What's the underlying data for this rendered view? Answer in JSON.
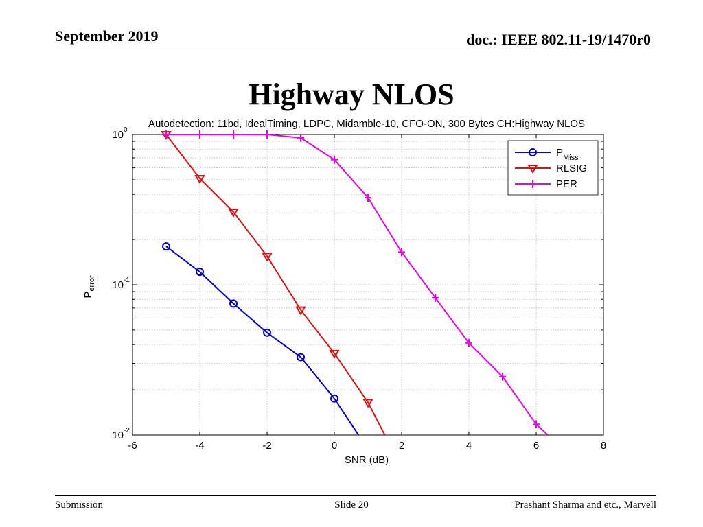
{
  "header": {
    "date": "September 2019",
    "doc": "doc.: IEEE 802.11-19/1470r0"
  },
  "slide": {
    "title": "Highway NLOS"
  },
  "footer": {
    "left": "Submission",
    "center": "Slide 20",
    "right": "Prashant Sharma and etc., Marvell"
  },
  "chart_data": {
    "type": "line",
    "title": "Autodetection: 11bd, IdealTiming, LDPC, Midamble-10, CFO-ON, 300 Bytes CH:Highway NLOS",
    "xlabel": "SNR (dB)",
    "ylabel_main": "P",
    "ylabel_sub": "error",
    "xscale": "linear",
    "yscale": "log",
    "xlim": [
      -6,
      8
    ],
    "ylim": [
      0.01,
      1
    ],
    "xticks": [
      -6,
      -4,
      -2,
      0,
      2,
      4,
      6,
      8
    ],
    "yticks": [
      {
        "value": 1,
        "base": "10",
        "exp": "0"
      },
      {
        "value": 0.1,
        "base": "10",
        "exp": "-1"
      },
      {
        "value": 0.01,
        "base": "10",
        "exp": "-2"
      }
    ],
    "grid": true,
    "legend_position": "top-right",
    "series": [
      {
        "name": "P",
        "name_sub": "Miss",
        "color": "#0000cc",
        "marker": "circle",
        "x": [
          -5,
          -4,
          -3,
          -2,
          -1,
          0,
          0.72
        ],
        "values": [
          0.18,
          0.122,
          0.075,
          0.048,
          0.033,
          0.0175,
          0.01
        ]
      },
      {
        "name": "RLSIG",
        "color": "#e01010",
        "marker": "triangle-down",
        "x": [
          -5,
          -4,
          -3,
          -2,
          -1,
          0,
          1,
          1.5
        ],
        "values": [
          1.0,
          0.51,
          0.305,
          0.155,
          0.068,
          0.035,
          0.0165,
          0.01
        ]
      },
      {
        "name": "PER",
        "color": "#ee00ee",
        "marker": "plus",
        "x": [
          -5,
          -4,
          -3,
          -2,
          -1,
          0,
          1,
          2,
          3,
          4,
          5,
          6,
          6.35
        ],
        "values": [
          1.0,
          1.0,
          1.0,
          1.0,
          0.95,
          0.68,
          0.38,
          0.165,
          0.082,
          0.041,
          0.0245,
          0.0118,
          0.01
        ]
      }
    ]
  }
}
